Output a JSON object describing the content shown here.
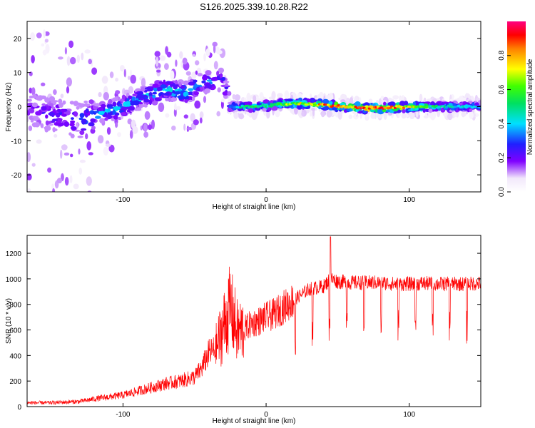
{
  "title": "S126.2025.339.10.28.R22",
  "colors": {
    "snr_line": "#ff0000",
    "background": "#ffffff",
    "axes": "#000000"
  },
  "chart_data": [
    {
      "type": "heatmap",
      "name": "spectrogram",
      "xlabel": "Height of straight line (km)",
      "ylabel": "Frequency (Hz)",
      "xlim": [
        -167,
        150
      ],
      "ylim": [
        -25,
        25
      ],
      "xticks": [
        -100,
        0,
        100
      ],
      "yticks": [
        -20,
        -10,
        0,
        10,
        20
      ],
      "colorbar": {
        "label": "Normalized spectral amplitude",
        "range": [
          0,
          1
        ],
        "ticks": [
          "0.0",
          "0.2",
          "0.4",
          "0.6",
          "0.8"
        ]
      },
      "ridge": [
        {
          "x": -160,
          "freq": -1.5,
          "amp": 0.22
        },
        {
          "x": -145,
          "freq": -3,
          "amp": 0.3
        },
        {
          "x": -130,
          "freq": -4,
          "amp": 0.35
        },
        {
          "x": -115,
          "freq": -2,
          "amp": 0.4
        },
        {
          "x": -100,
          "freq": 0,
          "amp": 0.4
        },
        {
          "x": -85,
          "freq": 3,
          "amp": 0.4
        },
        {
          "x": -70,
          "freq": 5,
          "amp": 0.45
        },
        {
          "x": -55,
          "freq": 4,
          "amp": 0.45
        },
        {
          "x": -45,
          "freq": 7,
          "amp": 0.4
        },
        {
          "x": -30,
          "freq": 8,
          "amp": 0.3
        },
        {
          "x": -25,
          "freq": 0,
          "amp": 0.35
        },
        {
          "x": -10,
          "freq": 0,
          "amp": 0.6
        },
        {
          "x": 0,
          "freq": 0.3,
          "amp": 0.55
        },
        {
          "x": 20,
          "freq": 1,
          "amp": 0.7
        },
        {
          "x": 40,
          "freq": 0.5,
          "amp": 0.85
        },
        {
          "x": 70,
          "freq": -0.5,
          "amp": 0.9
        },
        {
          "x": 90,
          "freq": -0.2,
          "amp": 0.9
        },
        {
          "x": 120,
          "freq": 0,
          "amp": 0.5
        },
        {
          "x": 150,
          "freq": 0,
          "amp": 0.4
        }
      ]
    },
    {
      "type": "line",
      "name": "snr",
      "xlabel": "Height of straight line (km)",
      "ylabel": "SNR (10 * v/v)",
      "xlim": [
        -167,
        150
      ],
      "ylim": [
        0,
        1340
      ],
      "xticks": [
        -100,
        0,
        100
      ],
      "yticks": [
        0,
        200,
        400,
        600,
        800,
        1000,
        1200
      ],
      "series": [
        {
          "name": "SNR",
          "x": [
            -167,
            -150,
            -130,
            -120,
            -100,
            -90,
            -80,
            -70,
            -60,
            -50,
            -45,
            -40,
            -35,
            -30,
            -25,
            -20,
            -15,
            -10,
            -5,
            0,
            5,
            10,
            15,
            20,
            25,
            30,
            40,
            45,
            50,
            60,
            70,
            80,
            90,
            100,
            110,
            120,
            130,
            140,
            150
          ],
          "values": [
            30,
            30,
            40,
            60,
            90,
            120,
            150,
            180,
            200,
            230,
            300,
            420,
            450,
            620,
            780,
            580,
            610,
            650,
            670,
            700,
            720,
            760,
            800,
            840,
            880,
            920,
            940,
            1000,
            980,
            970,
            970,
            970,
            960,
            960,
            965,
            960,
            960,
            960,
            965
          ]
        }
      ]
    }
  ]
}
